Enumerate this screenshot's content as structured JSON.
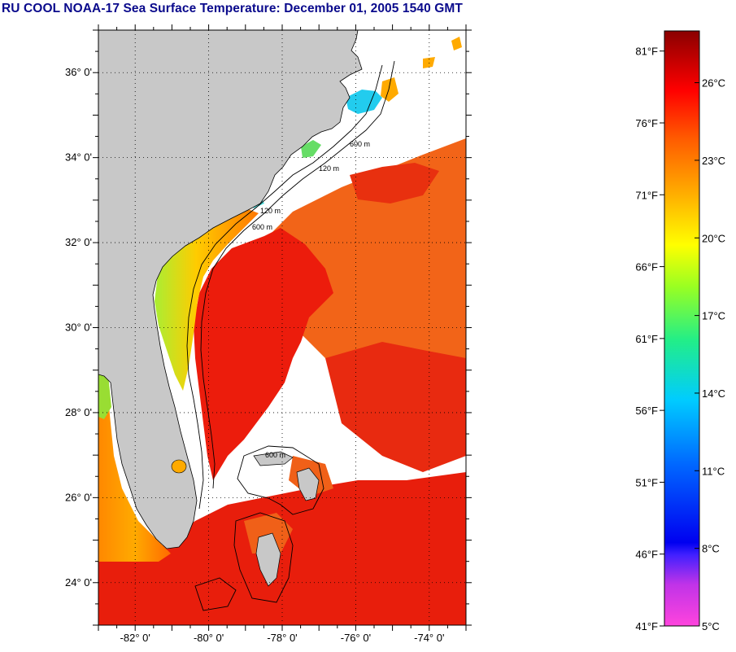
{
  "title": "RU COOL  NOAA-17  Sea Surface Temperature:  December 01, 2005 1540 GMT",
  "map": {
    "lon_range": [
      -83,
      -73
    ],
    "lat_range": [
      23,
      37
    ],
    "lat_ticks": [
      {
        "value": 36,
        "label": "36° 0'"
      },
      {
        "value": 34,
        "label": "34° 0'"
      },
      {
        "value": 32,
        "label": "32° 0'"
      },
      {
        "value": 30,
        "label": "30° 0'"
      },
      {
        "value": 28,
        "label": "28° 0'"
      },
      {
        "value": 26,
        "label": "26° 0'"
      },
      {
        "value": 24,
        "label": "24° 0'"
      }
    ],
    "lon_ticks": [
      {
        "value": -82,
        "label": "-82° 0'"
      },
      {
        "value": -80,
        "label": "-80° 0'"
      },
      {
        "value": -78,
        "label": "-78° 0'"
      },
      {
        "value": -76,
        "label": "-76° 0'"
      },
      {
        "value": -74,
        "label": "-74° 0'"
      }
    ],
    "contour_labels": [
      "120 m",
      "600 m",
      "120 m",
      "600 m",
      "600 m"
    ],
    "colors": {
      "land": "#c8c8c8",
      "cloud": "#ffffff",
      "gulfstream": "#ee1a0a",
      "offshore": "#f05a10"
    }
  },
  "colorbar": {
    "min_c": 5,
    "max_c": 28,
    "fahrenheit_labels": [
      "81°F",
      "76°F",
      "71°F",
      "66°F",
      "61°F",
      "56°F",
      "51°F",
      "46°F",
      "41°F"
    ],
    "celsius_labels": [
      "26°C",
      "23°C",
      "20°C",
      "17°C",
      "14°C",
      "11°C",
      "8°C",
      "5°C"
    ]
  }
}
